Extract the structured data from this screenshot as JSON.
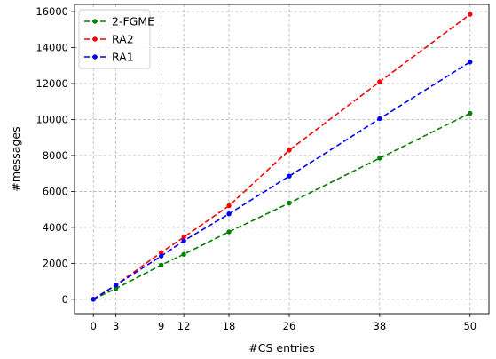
{
  "chart_data": {
    "type": "line",
    "title": "",
    "xlabel": "#CS entries",
    "ylabel": "#messages",
    "x": [
      0,
      3,
      9,
      12,
      18,
      26,
      38,
      50
    ],
    "x_ticks": [
      "0",
      "3",
      "9",
      "12",
      "18",
      "26",
      "38",
      "50"
    ],
    "y_ticks": [
      "0",
      "2000",
      "4000",
      "6000",
      "8000",
      "10000",
      "12000",
      "14000",
      "16000"
    ],
    "xlim": [
      -2.5,
      52.5
    ],
    "ylim": [
      -800,
      16400
    ],
    "grid": true,
    "legend_position": "top-left",
    "series": [
      {
        "name": "2-FGME",
        "color": "#008000",
        "values": [
          0,
          600,
          1900,
          2500,
          3750,
          5350,
          7850,
          10350
        ]
      },
      {
        "name": "RA2",
        "color": "#ff0000",
        "values": [
          0,
          800,
          2600,
          3450,
          5200,
          8300,
          12100,
          15850
        ]
      },
      {
        "name": "RA1",
        "color": "#0000ff",
        "values": [
          0,
          790,
          2400,
          3250,
          4750,
          6850,
          10050,
          13200
        ]
      }
    ]
  }
}
